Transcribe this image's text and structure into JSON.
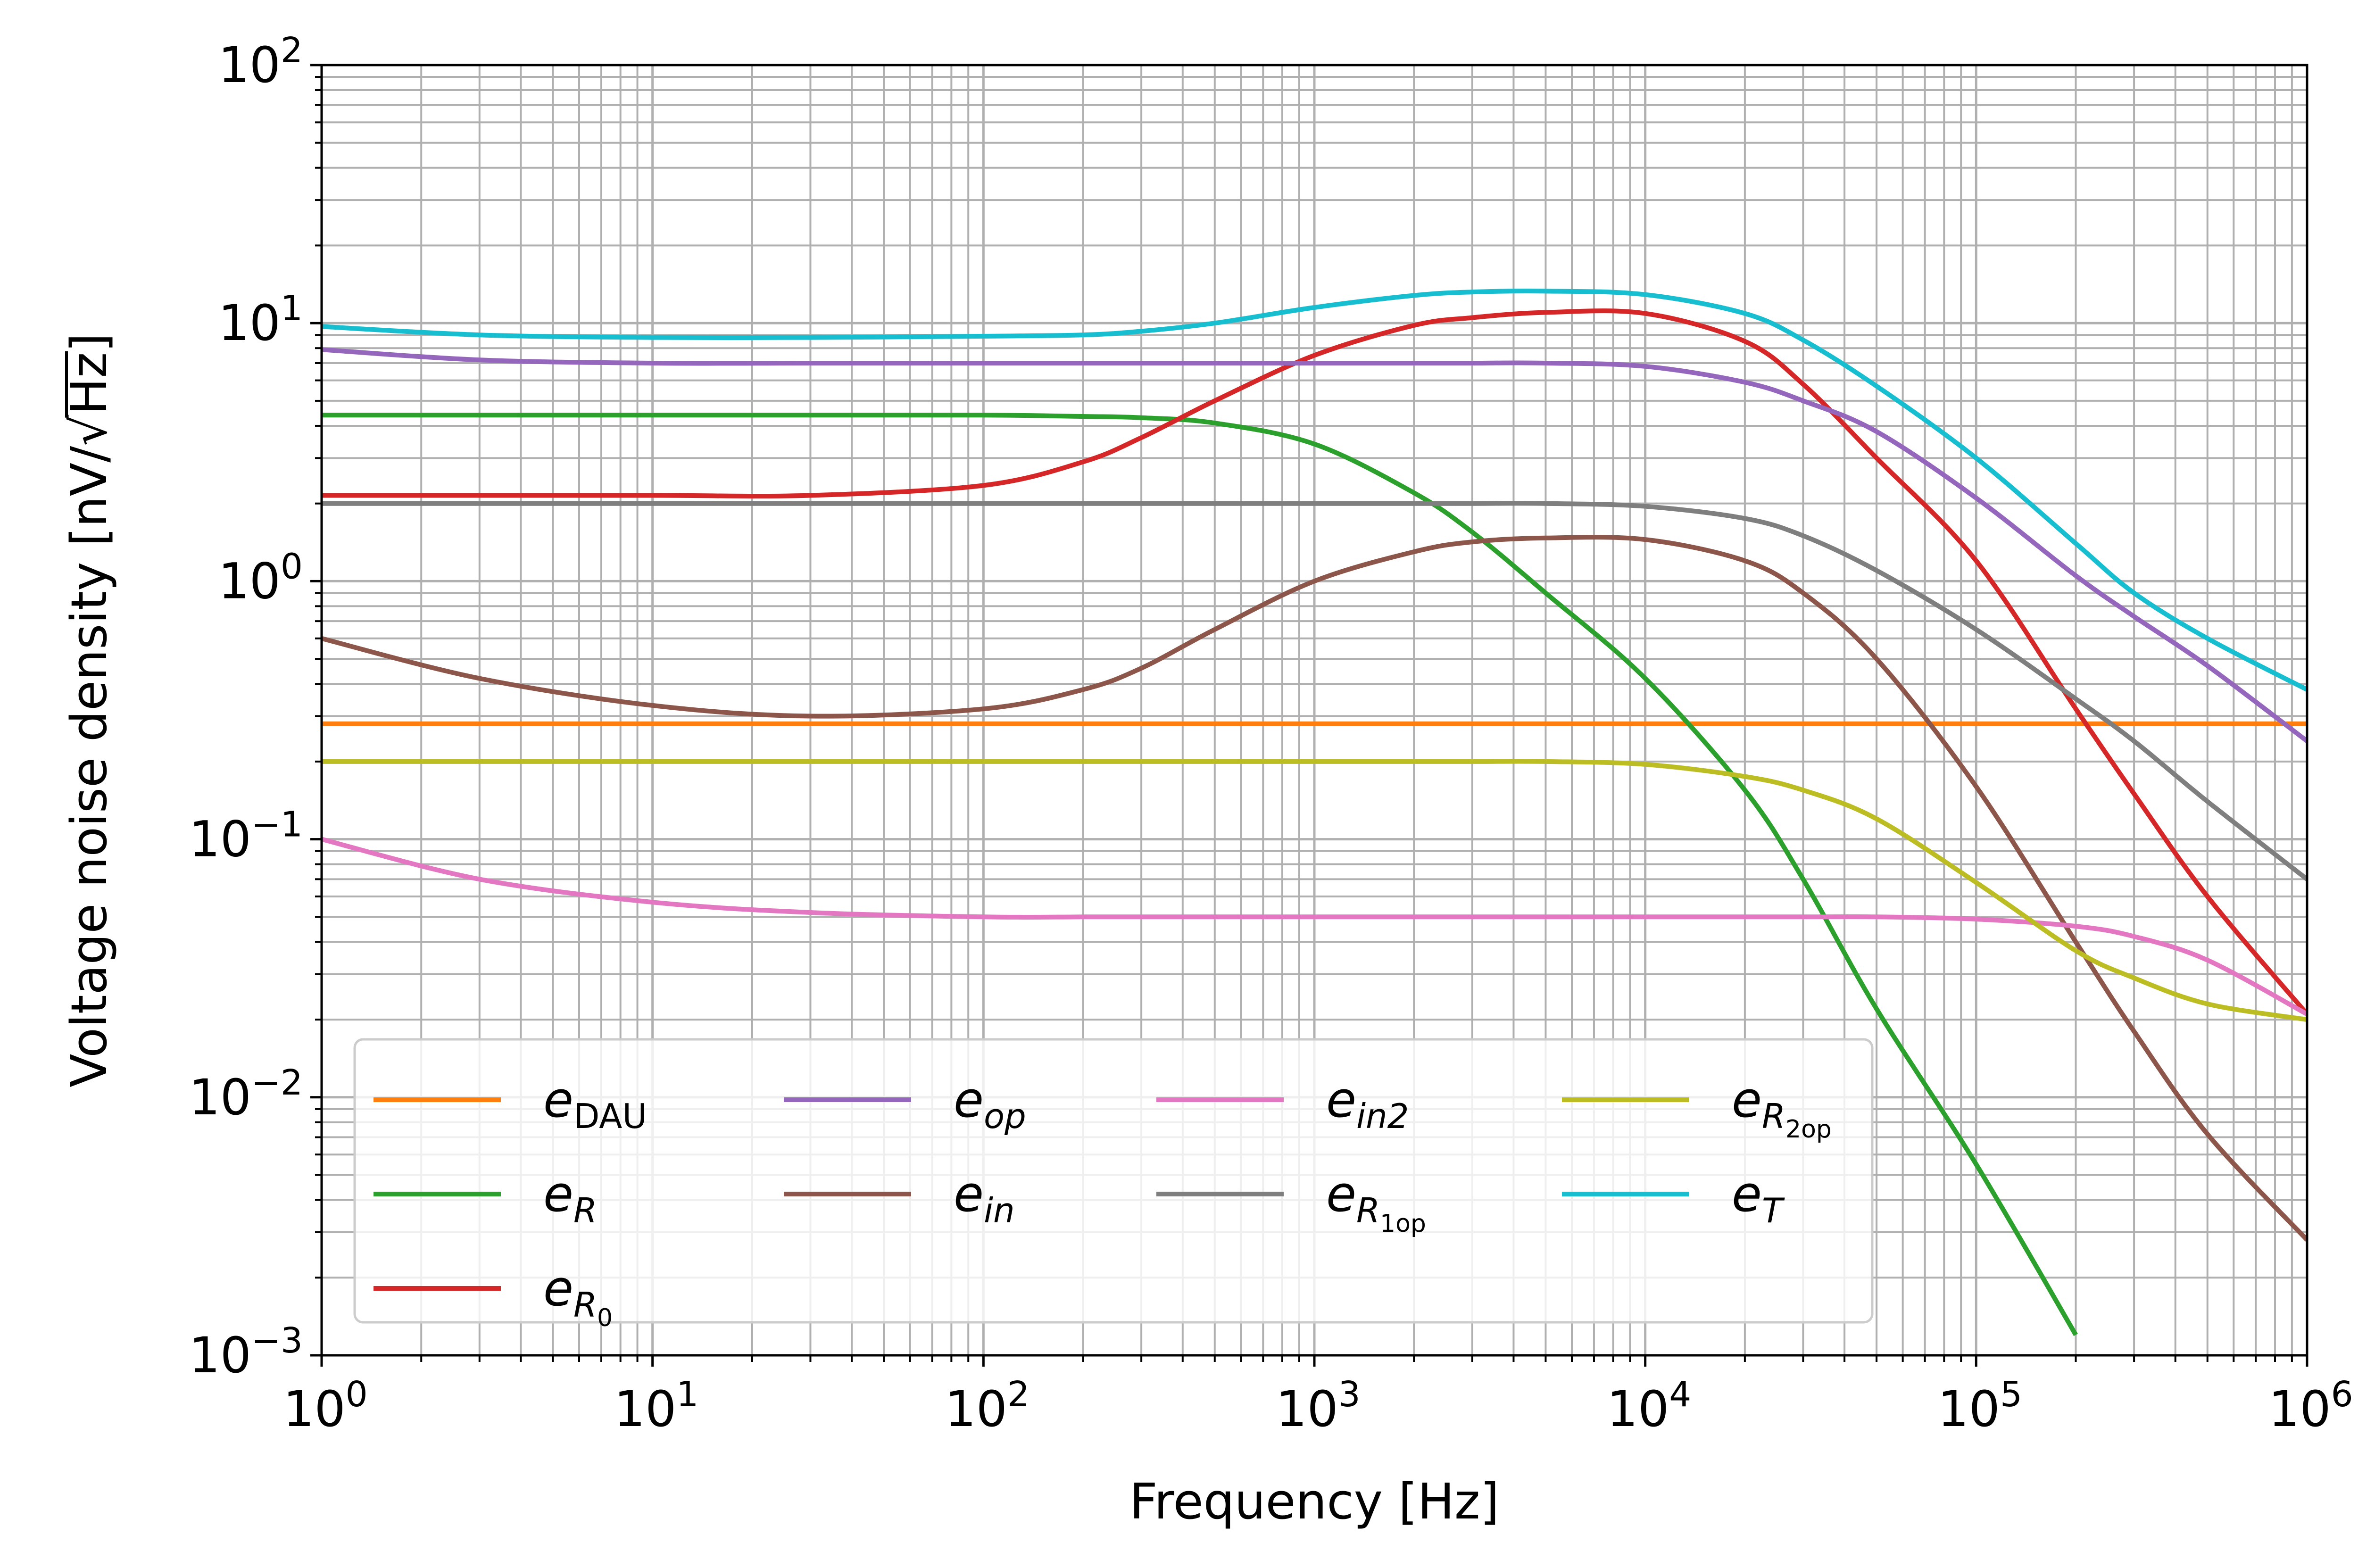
{
  "chart_data": {
    "type": "line",
    "title": "",
    "xlabel": "Frequency [Hz]",
    "ylabel_prefix": "Voltage noise density [nV/",
    "ylabel_radicand": "Hz",
    "ylabel_suffix": "]",
    "xscale": "log",
    "yscale": "log",
    "xlim": [
      1,
      1000000
    ],
    "ylim": [
      0.001,
      100
    ],
    "grid": "both-major-and-minor",
    "legend_location": "lower-left",
    "legend_columns": 4,
    "x_ticks": [
      {
        "base": "10",
        "exp": "0"
      },
      {
        "base": "10",
        "exp": "1"
      },
      {
        "base": "10",
        "exp": "2"
      },
      {
        "base": "10",
        "exp": "3"
      },
      {
        "base": "10",
        "exp": "4"
      },
      {
        "base": "10",
        "exp": "5"
      },
      {
        "base": "10",
        "exp": "6"
      }
    ],
    "y_ticks": [
      {
        "base": "10",
        "exp": "−3"
      },
      {
        "base": "10",
        "exp": "−2"
      },
      {
        "base": "10",
        "exp": "−1"
      },
      {
        "base": "10",
        "exp": "0"
      },
      {
        "base": "10",
        "exp": "1"
      },
      {
        "base": "10",
        "exp": "2"
      }
    ],
    "x": [
      1,
      3,
      10,
      30,
      100,
      200,
      300,
      500,
      1000,
      2000,
      3000,
      5000,
      10000,
      20000,
      30000,
      50000,
      100000,
      200000,
      300000,
      500000,
      1000000
    ],
    "series": [
      {
        "key": "edau",
        "name": "e_DAU",
        "label_main": "e",
        "label_sub": "DAU",
        "label_subsub": "",
        "sub_roman": true,
        "color": "#ff7f0e",
        "values": [
          0.28,
          0.28,
          0.28,
          0.28,
          0.28,
          0.28,
          0.28,
          0.28,
          0.28,
          0.28,
          0.28,
          0.28,
          0.28,
          0.28,
          0.28,
          0.28,
          0.28,
          0.28,
          0.28,
          0.28,
          0.28
        ]
      },
      {
        "key": "er",
        "name": "e_R",
        "label_main": "e",
        "label_sub": "R",
        "label_subsub": "",
        "sub_roman": false,
        "color": "#2ca02c",
        "values": [
          4.4,
          4.4,
          4.4,
          4.4,
          4.4,
          4.35,
          4.3,
          4.1,
          3.4,
          2.2,
          1.55,
          0.9,
          0.42,
          0.155,
          0.07,
          0.022,
          0.0055,
          0.0012,
          null,
          null,
          null
        ]
      },
      {
        "key": "er0",
        "name": "e_R0",
        "label_main": "e",
        "label_sub": "R",
        "label_subsub": "0",
        "sub_roman": false,
        "color": "#d62728",
        "values": [
          2.15,
          2.15,
          2.15,
          2.15,
          2.35,
          2.9,
          3.6,
          5.0,
          7.5,
          9.8,
          10.5,
          11.0,
          10.9,
          8.5,
          5.8,
          3.0,
          1.2,
          0.32,
          0.15,
          0.06,
          0.021
        ]
      },
      {
        "key": "eop",
        "name": "e_op",
        "label_main": "e",
        "label_sub": "op",
        "label_subsub": "",
        "sub_roman": false,
        "color": "#9467bd",
        "values": [
          7.9,
          7.2,
          7.0,
          7.0,
          7.0,
          7.0,
          7.0,
          7.0,
          7.0,
          7.0,
          7.0,
          7.0,
          6.8,
          5.9,
          5.0,
          3.8,
          2.1,
          1.05,
          0.73,
          0.47,
          0.24
        ]
      },
      {
        "key": "ein",
        "name": "e_in",
        "label_main": "e",
        "label_sub": "in",
        "label_subsub": "",
        "sub_roman": false,
        "color": "#8c564b",
        "values": [
          0.6,
          0.42,
          0.33,
          0.3,
          0.32,
          0.38,
          0.46,
          0.65,
          1.0,
          1.3,
          1.42,
          1.47,
          1.45,
          1.2,
          0.9,
          0.5,
          0.16,
          0.04,
          0.018,
          0.0072,
          0.0028
        ]
      },
      {
        "key": "ein2",
        "name": "e_in2",
        "label_main": "e",
        "label_sub": "in2",
        "label_subsub": "",
        "sub_roman": false,
        "color": "#e377c2",
        "values": [
          0.1,
          0.07,
          0.057,
          0.052,
          0.05,
          0.05,
          0.05,
          0.05,
          0.05,
          0.05,
          0.05,
          0.05,
          0.05,
          0.05,
          0.05,
          0.05,
          0.049,
          0.046,
          0.042,
          0.034,
          0.021
        ]
      },
      {
        "key": "er1op",
        "name": "e_R1op",
        "label_main": "e",
        "label_sub": "R",
        "label_subsub": "1op",
        "sub_roman": false,
        "color": "#7f7f7f",
        "values": [
          2.0,
          2.0,
          2.0,
          2.0,
          2.0,
          2.0,
          2.0,
          2.0,
          2.0,
          2.0,
          2.0,
          2.0,
          1.95,
          1.75,
          1.5,
          1.1,
          0.65,
          0.35,
          0.24,
          0.14,
          0.07
        ]
      },
      {
        "key": "er2op",
        "name": "e_R2op",
        "label_main": "e",
        "label_sub": "R",
        "label_subsub": "2op",
        "sub_roman": false,
        "color": "#bcbd22",
        "values": [
          0.2,
          0.2,
          0.2,
          0.2,
          0.2,
          0.2,
          0.2,
          0.2,
          0.2,
          0.2,
          0.2,
          0.2,
          0.195,
          0.175,
          0.155,
          0.12,
          0.068,
          0.037,
          0.029,
          0.023,
          0.02
        ]
      },
      {
        "key": "et",
        "name": "e_T",
        "label_main": "e",
        "label_sub": "T",
        "label_subsub": "",
        "sub_roman": false,
        "color": "#17becf",
        "values": [
          9.7,
          9.0,
          8.8,
          8.8,
          8.9,
          9.0,
          9.3,
          10.0,
          11.5,
          12.8,
          13.2,
          13.3,
          12.9,
          10.9,
          8.6,
          5.7,
          3.0,
          1.4,
          0.9,
          0.6,
          0.38
        ]
      }
    ]
  }
}
